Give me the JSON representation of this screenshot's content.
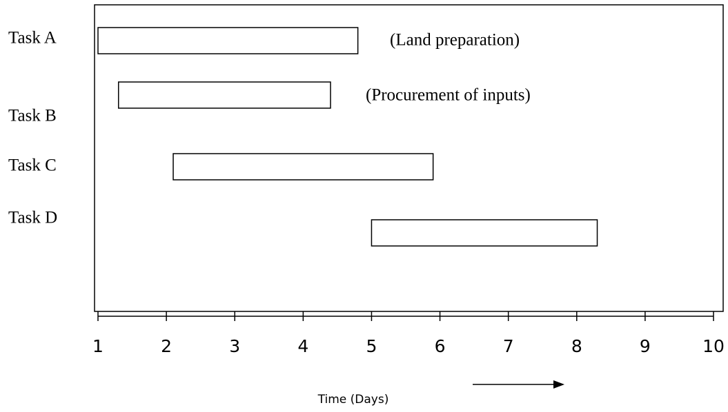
{
  "chart_data": {
    "type": "gantt",
    "tasks": [
      {
        "name": "Task A",
        "start": 1.0,
        "end": 4.8
      },
      {
        "name": "Task B",
        "start": 1.3,
        "end": 4.4
      },
      {
        "name": "Task C",
        "start": 2.1,
        "end": 5.9
      },
      {
        "name": "Task D",
        "start": 5.0,
        "end": 8.3
      }
    ],
    "annotations": [
      "(Land preparation)",
      "(Procurement of inputs)"
    ],
    "xlabel": "Time (Days)",
    "xlim": [
      1,
      10
    ],
    "xticks": [
      1,
      2,
      3,
      4,
      5,
      6,
      7,
      8,
      9,
      10
    ],
    "color": "#ffffff"
  }
}
